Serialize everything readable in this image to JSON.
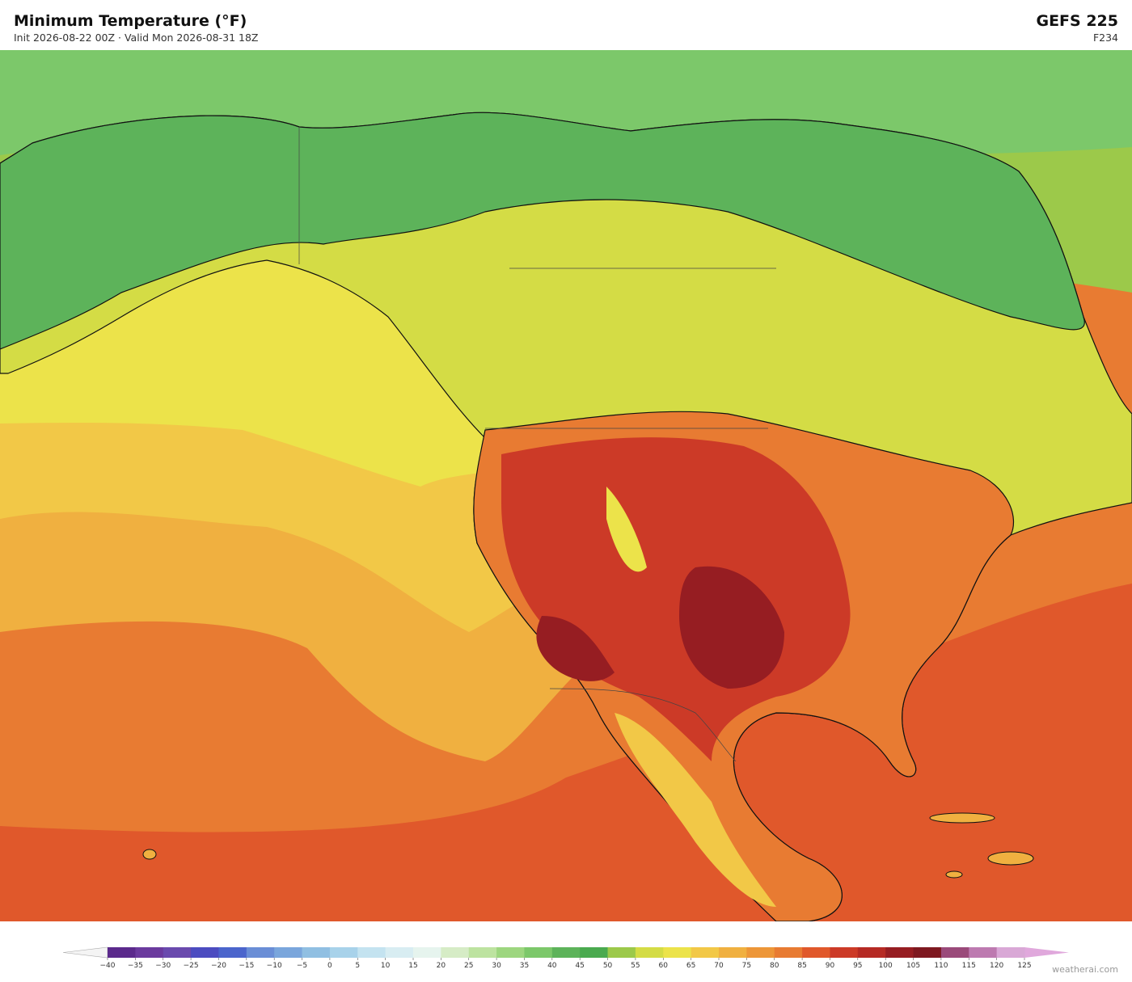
{
  "header": {
    "title": "Minimum Temperature  (°F)",
    "subtitle": "Init 2026-08-22 00Z  ·  Valid Mon 2026-08-31 18Z",
    "model": "GEFS  225",
    "forecast_hour": "F234"
  },
  "colorbar": {
    "ticks": [
      {
        "value": -40,
        "label": "−40"
      },
      {
        "value": -35,
        "label": "−35"
      },
      {
        "value": -30,
        "label": "−30"
      },
      {
        "value": -25,
        "label": "−25"
      },
      {
        "value": -20,
        "label": "−20"
      },
      {
        "value": -15,
        "label": "−15"
      },
      {
        "value": -10,
        "label": "−10"
      },
      {
        "value": -5,
        "label": "−5"
      },
      0,
      5,
      10,
      15,
      20,
      25,
      30,
      35,
      40,
      45,
      50,
      55,
      60,
      65,
      70,
      75,
      80,
      85,
      90,
      95,
      100,
      105,
      110,
      115,
      120,
      125
    ],
    "colors": [
      "#5b2a8c",
      "#6b3a9e",
      "#6a4aae",
      "#4c4cc0",
      "#4b65cc",
      "#6a8ed6",
      "#7aa6dc",
      "#90bfe2",
      "#a8d2ea",
      "#c4e3f0",
      "#d8edf2",
      "#e6f4ee",
      "#d6ecc6",
      "#bde3a0",
      "#9dd67f",
      "#7cc86a",
      "#5db35a",
      "#4aaa4f",
      "#9cc94a",
      "#d4dc45",
      "#ece34a",
      "#f2c847",
      "#f0b040",
      "#ed9638",
      "#e87b32",
      "#e0582b",
      "#cc3a27",
      "#b52a24",
      "#961d22",
      "#7e1820",
      "#9a4a7a",
      "#bd7ab0",
      "#d9a8d6"
    ],
    "extend_colors": [
      "#f4f4f4",
      "#e0a8dc"
    ]
  },
  "watermark": "weatherai.com"
}
